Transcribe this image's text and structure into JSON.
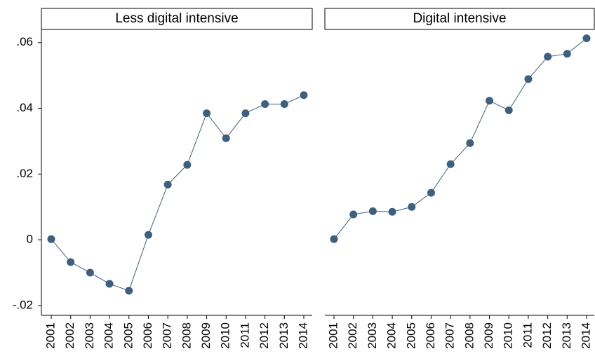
{
  "chart_data": [
    {
      "type": "line",
      "title": "Less digital intensive",
      "color": "#3e5f7d",
      "categories": [
        "2001",
        "2002",
        "2003",
        "2004",
        "2005",
        "2006",
        "2007",
        "2008",
        "2009",
        "2010",
        "2011",
        "2012",
        "2013",
        "2014"
      ],
      "values": [
        0.0002,
        -0.0068,
        -0.01,
        -0.0134,
        -0.0155,
        0.0015,
        0.0168,
        0.0228,
        0.0385,
        0.0309,
        0.0385,
        0.0413,
        0.0413,
        0.044
      ],
      "ylim": [
        -0.023,
        0.064
      ],
      "yticks": [
        {
          "value": 0.06,
          "label": ".06"
        },
        {
          "value": 0.04,
          "label": ".04"
        },
        {
          "value": 0.02,
          "label": ".02"
        },
        0,
        {
          "value": -0.02,
          "label": "-.02"
        }
      ]
    },
    {
      "type": "line",
      "title": "Digital intensive",
      "color": "#3e5f7d",
      "categories": [
        "2001",
        "2002",
        "2003",
        "2004",
        "2005",
        "2006",
        "2007",
        "2008",
        "2009",
        "2010",
        "2011",
        "2012",
        "2013",
        "2014"
      ],
      "values": [
        0.0002,
        0.0077,
        0.0087,
        0.0085,
        0.01,
        0.0143,
        0.023,
        0.0294,
        0.0423,
        0.0394,
        0.0489,
        0.0557,
        0.0566,
        0.0613
      ],
      "ylim": [
        -0.023,
        0.064
      ]
    }
  ]
}
